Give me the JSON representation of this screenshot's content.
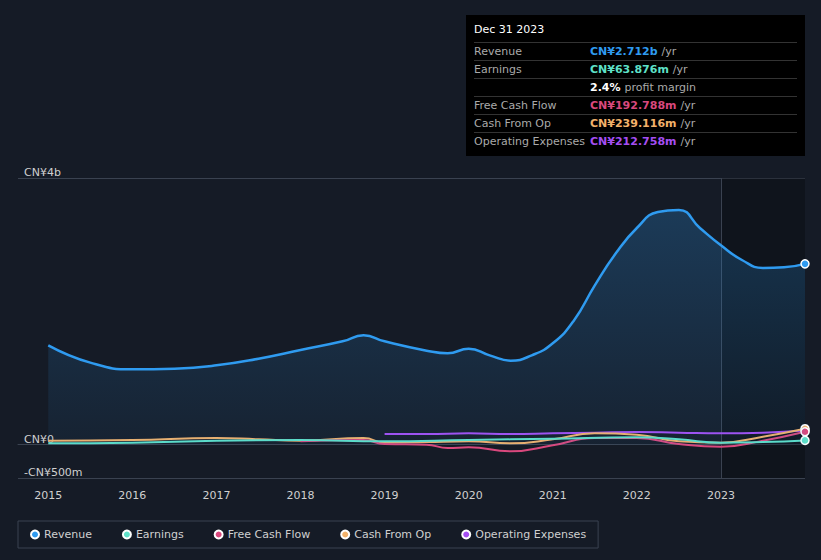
{
  "chart_data": {
    "type": "line",
    "xlim": [
      2014.64,
      2024
    ],
    "xticks": [
      2015,
      2016,
      2017,
      2018,
      2019,
      2020,
      2021,
      2022,
      2023
    ],
    "ylim": [
      -0.5,
      4
    ],
    "yticks": [
      {
        "value": -0.5,
        "label": "-CN¥500m"
      },
      {
        "value": 0,
        "label": "CN¥0"
      },
      {
        "value": 4,
        "label": "CN¥4b"
      }
    ],
    "grid": true,
    "legend": "bottom-left",
    "series": [
      {
        "name": "Revenue",
        "color": "#2f9bf0",
        "x": [
          2015,
          2015.5,
          2016,
          2016.5,
          2017,
          2017.5,
          2018,
          2018.5,
          2018.75,
          2019,
          2019.5,
          2019.75,
          2020,
          2020.25,
          2020.5,
          2020.75,
          2021,
          2021.25,
          2021.5,
          2021.75,
          2022,
          2022.25,
          2022.5,
          2022.75,
          2023,
          2023.25,
          2023.5,
          2023.75,
          2024
        ],
        "values": [
          1.49,
          1.23,
          1.13,
          1.14,
          1.19,
          1.29,
          1.42,
          1.55,
          1.64,
          1.55,
          1.41,
          1.37,
          1.44,
          1.34,
          1.26,
          1.34,
          1.52,
          1.86,
          2.39,
          2.87,
          3.25,
          3.49,
          3.52,
          3.25,
          2.99,
          2.77,
          2.65,
          2.66,
          2.712
        ]
      },
      {
        "name": "Earnings",
        "color": "#5ee0c8",
        "x": [
          2015,
          2016,
          2017,
          2018,
          2019,
          2020,
          2021,
          2022,
          2022.5,
          2023,
          2023.5,
          2024
        ],
        "values": [
          0.02,
          0.03,
          0.06,
          0.07,
          0.05,
          0.07,
          0.09,
          0.11,
          0.08,
          0.03,
          0.04,
          0.064
        ]
      },
      {
        "name": "Free Cash Flow",
        "color": "#d9487d",
        "x": [
          2018,
          2018.75,
          2019,
          2019.5,
          2019.75,
          2020,
          2020.5,
          2021,
          2021.5,
          2022,
          2022.5,
          2023,
          2023.5,
          2024
        ],
        "values": [
          0.05,
          0.07,
          0.01,
          0.0,
          -0.05,
          -0.04,
          -0.1,
          -0.01,
          0.1,
          0.1,
          0.01,
          -0.03,
          0.06,
          0.193
        ]
      },
      {
        "name": "Cash From Op",
        "color": "#f2b16a",
        "x": [
          2015,
          2016,
          2017,
          2017.5,
          2018,
          2018.75,
          2019,
          2019.5,
          2020,
          2020.5,
          2021,
          2021.5,
          2022,
          2022.5,
          2023,
          2023.5,
          2024
        ],
        "values": [
          0.06,
          0.07,
          0.1,
          0.08,
          0.06,
          0.1,
          0.03,
          0.04,
          0.05,
          0.02,
          0.08,
          0.17,
          0.15,
          0.05,
          0.03,
          0.12,
          0.239
        ]
      },
      {
        "name": "Operating Expenses",
        "color": "#a54ef2",
        "x": [
          2019,
          2019.5,
          2020,
          2020.5,
          2021,
          2021.5,
          2022,
          2022.5,
          2023,
          2023.5,
          2024
        ],
        "values": [
          0.16,
          0.16,
          0.17,
          0.16,
          0.17,
          0.18,
          0.19,
          0.18,
          0.17,
          0.18,
          0.213
        ]
      }
    ],
    "annotation": {
      "title": "Dec 31 2023",
      "rows": [
        {
          "label": "Revenue",
          "value": "CN¥2.712b",
          "unit": "/yr",
          "color": "#2f9bf0"
        },
        {
          "label": "Earnings",
          "value": "CN¥63.876m",
          "unit": "/yr",
          "color": "#5ee0c8"
        },
        {
          "value": "2.4%",
          "unit": "profit margin",
          "color": "#ffffff"
        },
        {
          "label": "Free Cash Flow",
          "value": "CN¥192.788m",
          "unit": "/yr",
          "color": "#d9487d"
        },
        {
          "label": "Cash From Op",
          "value": "CN¥239.116m",
          "unit": "/yr",
          "color": "#f2b16a"
        },
        {
          "label": "Operating Expenses",
          "value": "CN¥212.758m",
          "unit": "/yr",
          "color": "#a54ef2"
        }
      ]
    }
  }
}
